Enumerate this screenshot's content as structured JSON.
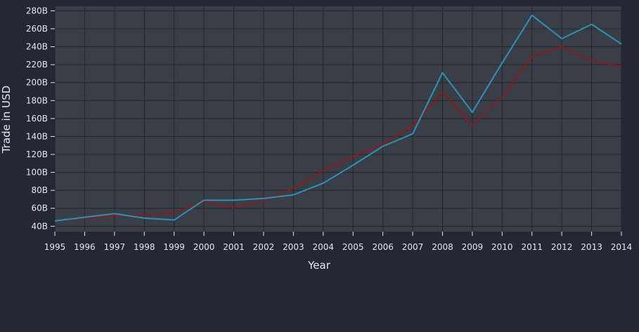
{
  "chart_data": {
    "type": "line",
    "title": "",
    "xlabel": "Year",
    "ylabel": "Trade in USD",
    "x": [
      1995,
      1996,
      1997,
      1998,
      1999,
      2000,
      2001,
      2002,
      2003,
      2004,
      2005,
      2006,
      2007,
      2008,
      2009,
      2010,
      2011,
      2012,
      2013,
      2014
    ],
    "x_tick_labels": [
      "1995",
      "1996",
      "1997",
      "1998",
      "1999",
      "2000",
      "2001",
      "2002",
      "2003",
      "2004",
      "2005",
      "2006",
      "2007",
      "2008",
      "2009",
      "2010",
      "2011",
      "2012",
      "2013",
      "2014"
    ],
    "y_ticks": [
      40,
      60,
      80,
      100,
      120,
      140,
      160,
      180,
      200,
      220,
      240,
      260,
      280
    ],
    "y_tick_labels": [
      "40B",
      "60B",
      "80B",
      "100B",
      "120B",
      "140B",
      "160B",
      "180B",
      "200B",
      "220B",
      "240B",
      "260B",
      "280B"
    ],
    "ylim": [
      34,
      285
    ],
    "xlim": [
      1995,
      2014
    ],
    "grid": true,
    "legend": "none",
    "background": "#232834",
    "plot_background": "#3a3e47",
    "grid_color": "#23262e",
    "series": [
      {
        "color": "#8b1a1a",
        "values": [
          46,
          49,
          52,
          52,
          55,
          67,
          61,
          68,
          82,
          102,
          118,
          131,
          152,
          189,
          153,
          184,
          229,
          240,
          224,
          218
        ]
      },
      {
        "color": "#2a93b8",
        "values": [
          46,
          50,
          54,
          49,
          47,
          69,
          69,
          71,
          75,
          88,
          108,
          129,
          143,
          211,
          167,
          222,
          275,
          249,
          265,
          243
        ]
      }
    ]
  }
}
